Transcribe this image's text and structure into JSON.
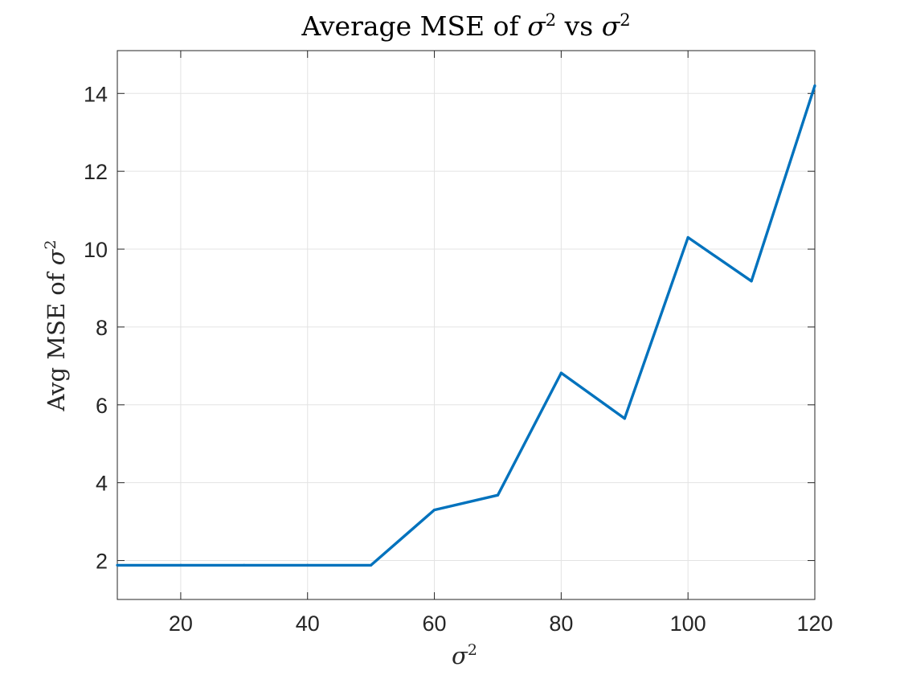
{
  "chart_data": {
    "type": "line",
    "title": {
      "prefix": "Average MSE of ",
      "symbol1": "σ",
      "sup1": "2",
      "middle": " vs ",
      "symbol2": "σ",
      "sup2": "2"
    },
    "xlabel": {
      "symbol": "σ",
      "sup": "2"
    },
    "ylabel": {
      "prefix": "Avg MSE of ",
      "symbol": "σ",
      "sup": "2"
    },
    "xlim": [
      10,
      120
    ],
    "ylim": [
      1,
      15.1
    ],
    "xticks": [
      20,
      40,
      60,
      80,
      100,
      120
    ],
    "yticks": [
      2,
      4,
      6,
      8,
      10,
      12,
      14
    ],
    "grid": true,
    "series": [
      {
        "color": "#0072BD",
        "x": [
          10,
          20,
          30,
          40,
          50,
          60,
          70,
          80,
          90,
          100,
          110,
          120
        ],
        "y": [
          1.88,
          1.88,
          1.88,
          1.88,
          1.88,
          3.3,
          3.68,
          6.82,
          5.65,
          10.3,
          9.18,
          14.2
        ]
      }
    ]
  }
}
